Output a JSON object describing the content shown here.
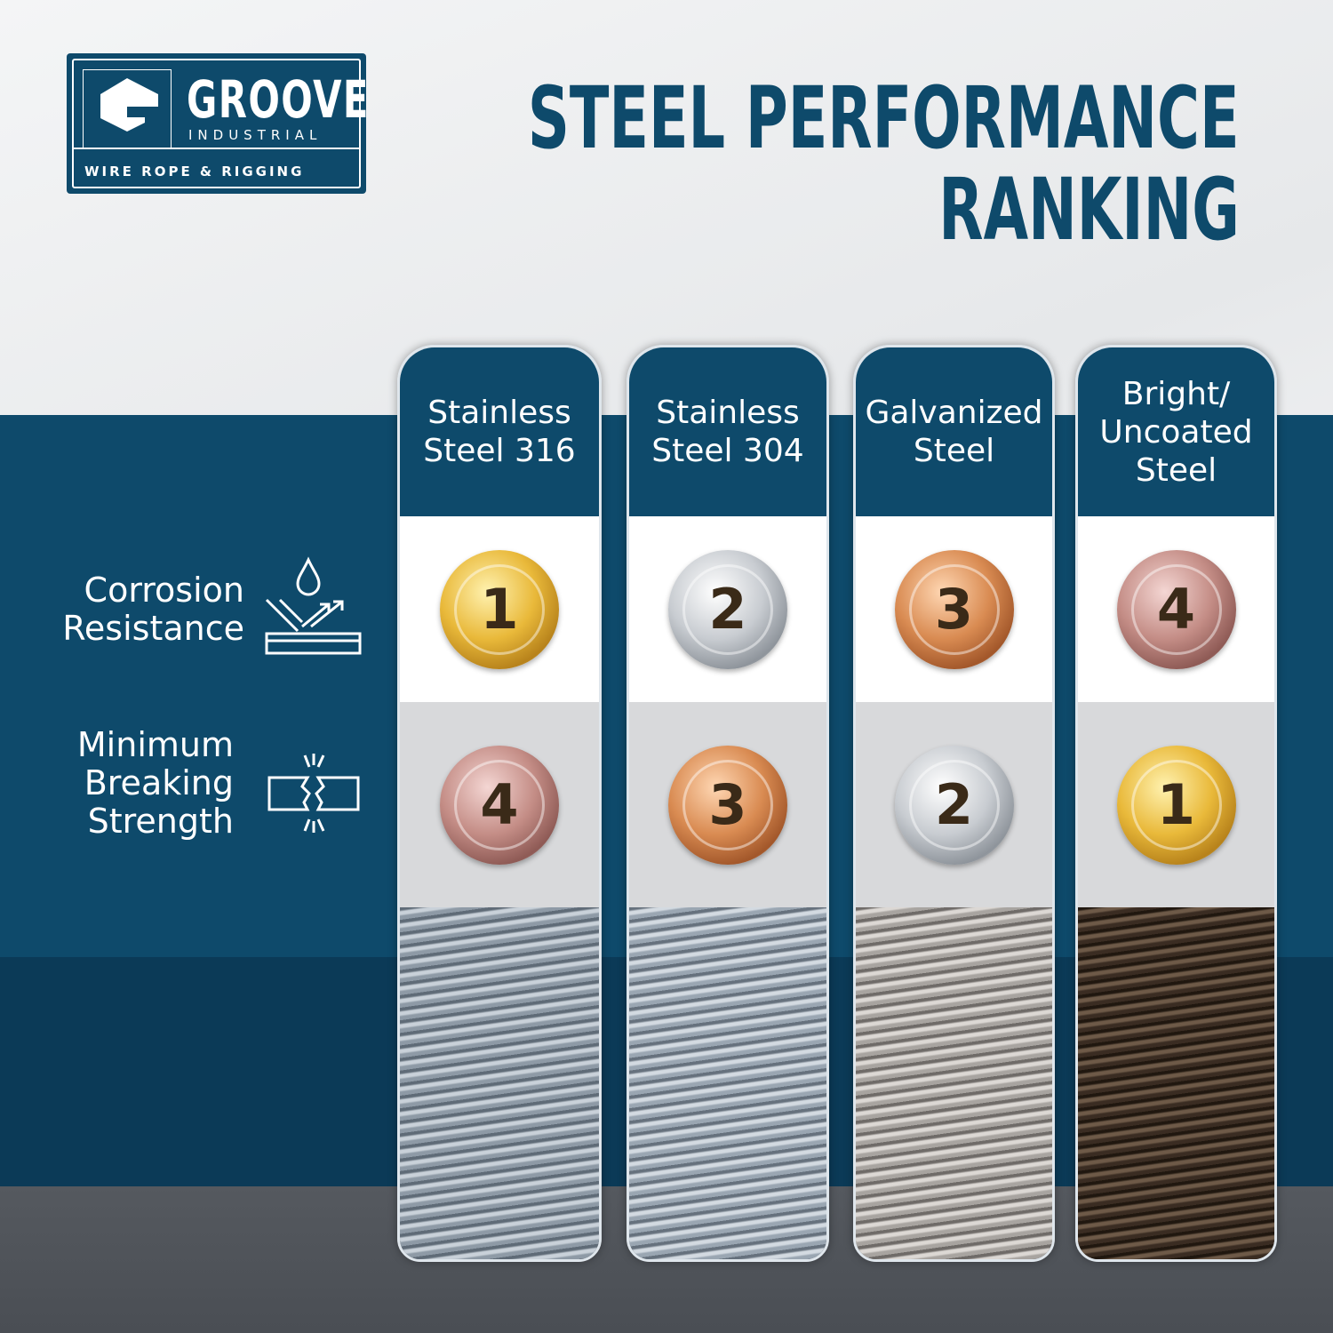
{
  "logo": {
    "brand": "GROOVE",
    "sub": "INDUSTRIAL",
    "tagline": "WIRE ROPE & RIGGING"
  },
  "title": [
    "STEEL PERFORMANCE",
    "RANKING"
  ],
  "rows": [
    {
      "label": [
        "Corrosion",
        "Resistance"
      ]
    },
    {
      "label": [
        "Minimum",
        "Breaking",
        "Strength"
      ]
    }
  ],
  "columns": [
    {
      "name": [
        "Stainless",
        "Steel 316"
      ],
      "ranks": [
        1,
        4
      ]
    },
    {
      "name": [
        "Stainless",
        "Steel 304"
      ],
      "ranks": [
        2,
        3
      ]
    },
    {
      "name": [
        "Galvanized",
        "Steel"
      ],
      "ranks": [
        3,
        2
      ]
    },
    {
      "name": [
        "Bright/",
        "Uncoated",
        "Steel"
      ],
      "ranks": [
        4,
        1
      ]
    }
  ]
}
